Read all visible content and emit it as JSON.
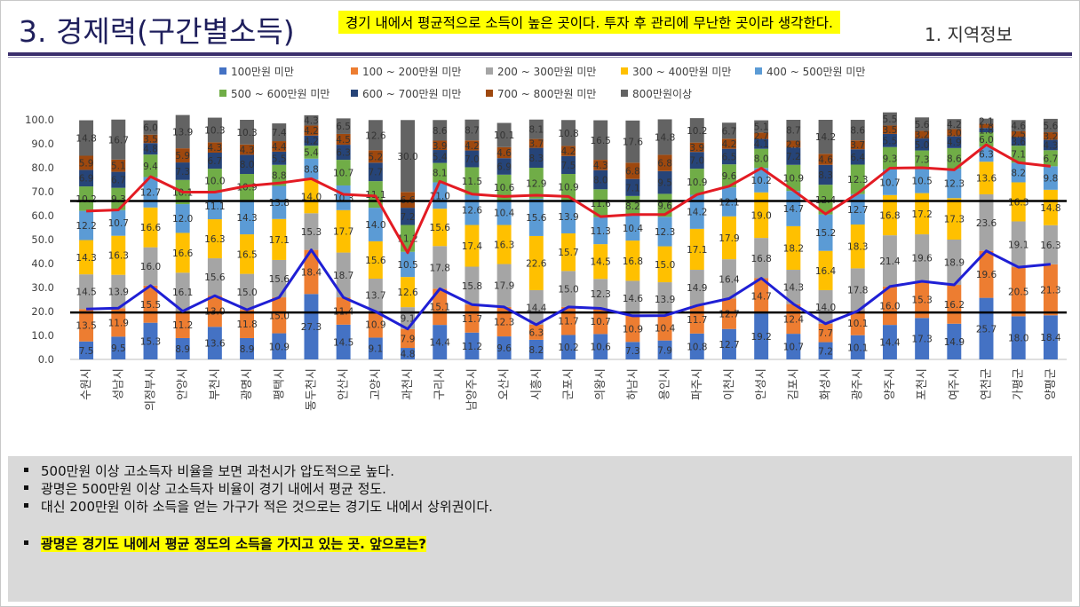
{
  "header": {
    "title": "3. 경제력(구간별소득)",
    "highlight": "경기 내에서 평균적으로 소득이 높은 곳이다. 투자 후 관리에 무난한 곳이라 생각한다.",
    "section": "1. 지역정보"
  },
  "notes": {
    "items": [
      "500만원 이상 고소득자 비율을 보면 과천시가 압도적으로 높다.",
      "광명은 500만원 이상 고소득자 비율이 경기 내에서 평균 정도.",
      "대신 200만원 이하 소득을 얻는 가구가 적은 것으로는 경기도 내에서 상위권이다."
    ],
    "conclusion": "광명은 경기도 내에서 평균 정도의 소득을 가지고 있는 곳. 앞으로는?"
  },
  "chart_data": {
    "type": "bar",
    "stacked": true,
    "ylim": [
      0,
      100
    ],
    "yticks": [
      "0.0",
      "10.0",
      "20.0",
      "30.0",
      "40.0",
      "50.0",
      "60.0",
      "70.0",
      "80.0",
      "90.0",
      "100.0"
    ],
    "legend_position": "top",
    "categories": [
      "수원시",
      "성남시",
      "의정부시",
      "안양시",
      "부천시",
      "광명시",
      "평택시",
      "동두천시",
      "안산시",
      "고양시",
      "과천시",
      "구리시",
      "남양주시",
      "오산시",
      "시흥시",
      "군포시",
      "의왕시",
      "하남시",
      "용인시",
      "파주시",
      "이천시",
      "안성시",
      "김포시",
      "화성시",
      "광주시",
      "양주시",
      "포천시",
      "여주시",
      "연천군",
      "가평군",
      "양평군"
    ],
    "series": [
      {
        "name": "100만원 미만",
        "color": "#4472c4",
        "values": [
          7.5,
          9.5,
          15.3,
          8.9,
          13.6,
          8.9,
          10.9,
          27.3,
          14.5,
          9.1,
          4.8,
          14.4,
          11.2,
          9.6,
          8.2,
          10.2,
          10.6,
          7.3,
          7.9,
          10.8,
          12.7,
          19.2,
          10.7,
          7.2,
          10.1,
          14.4,
          17.3,
          14.9,
          25.7,
          18.0,
          18.4
        ]
      },
      {
        "name": "100 ~ 200만원 미만",
        "color": "#ed7d31",
        "values": [
          13.5,
          11.9,
          15.5,
          11.2,
          13.0,
          11.8,
          15.0,
          18.4,
          11.4,
          10.9,
          7.9,
          15.1,
          11.7,
          12.3,
          6.3,
          11.7,
          10.7,
          10.9,
          10.4,
          11.7,
          12.7,
          14.7,
          12.4,
          7.7,
          10.1,
          16.0,
          15.3,
          16.2,
          19.6,
          20.5,
          21.3
        ]
      },
      {
        "name": "200 ~ 300만원 미만",
        "color": "#a5a5a5",
        "values": [
          14.5,
          13.9,
          16.0,
          16.1,
          15.6,
          15.0,
          15.6,
          15.3,
          18.7,
          13.7,
          9.1,
          17.8,
          15.8,
          17.9,
          14.4,
          15.0,
          12.3,
          14.6,
          13.9,
          14.9,
          16.4,
          16.8,
          14.3,
          14.0,
          17.8,
          21.4,
          19.6,
          18.9,
          23.6,
          19.1,
          16.3
        ]
      },
      {
        "name": "300 ~ 400만원 미만",
        "color": "#ffc000",
        "values": [
          14.3,
          16.3,
          16.6,
          16.6,
          16.3,
          16.5,
          17.1,
          14.0,
          17.7,
          15.6,
          12.6,
          15.6,
          17.4,
          16.3,
          22.6,
          15.7,
          14.5,
          16.8,
          15.0,
          17.1,
          17.9,
          19.0,
          18.2,
          16.4,
          18.3,
          16.8,
          17.2,
          17.3,
          13.6,
          16.3,
          14.8
        ]
      },
      {
        "name": "400 ~ 500만원 미만",
        "color": "#5b9bd5",
        "values": [
          12.2,
          10.7,
          12.7,
          12.0,
          11.1,
          14.3,
          13.8,
          8.8,
          10.3,
          14.0,
          10.5,
          11.0,
          12.6,
          10.4,
          15.6,
          13.9,
          11.3,
          10.4,
          12.3,
          14.2,
          12.1,
          10.2,
          14.7,
          15.2,
          12.7,
          10.7,
          10.5,
          12.3,
          6.3,
          8.2,
          9.8
        ]
      },
      {
        "name": "500 ~ 600만원 미만",
        "color": "#70ad47",
        "values": [
          10.2,
          9.3,
          9.4,
          10.1,
          10.0,
          10.9,
          8.8,
          5.4,
          10.7,
          11.1,
          11.2,
          8.1,
          11.5,
          10.6,
          12.9,
          10.9,
          11.6,
          8.2,
          9.6,
          10.9,
          9.6,
          8.0,
          10.9,
          12.4,
          12.3,
          9.3,
          7.3,
          8.6,
          6.0,
          7.1,
          6.7
        ]
      },
      {
        "name": "600 ~ 700만원 미만",
        "color": "#264478",
        "values": [
          6.9,
          6.7,
          4.8,
          7.3,
          6.7,
          8.0,
          5.5,
          4.2,
          6.3,
          7.7,
          7.2,
          5.4,
          7.0,
          6.9,
          8.3,
          7.5,
          8.0,
          7.1,
          9.5,
          7.0,
          6.5,
          4.1,
          7.2,
          8.3,
          6.4,
          5.5,
          5.0,
          4.9,
          1.8,
          3.6,
          4.3
        ]
      },
      {
        "name": "700 ~ 800만원 미만",
        "color": "#9e480e",
        "values": [
          5.9,
          5.1,
          3.5,
          5.9,
          4.3,
          4.3,
          4.4,
          4.2,
          4.5,
          5.2,
          6.6,
          3.9,
          4.2,
          4.6,
          3.7,
          4.2,
          4.3,
          6.8,
          6.8,
          3.9,
          4.2,
          2.7,
          2.9,
          4.6,
          3.7,
          3.5,
          3.2,
          3.0,
          1.8,
          2.5,
          3.2
        ]
      },
      {
        "name": "800만원이상",
        "color": "#636363",
        "values": [
          14.8,
          16.7,
          6.0,
          13.9,
          10.3,
          10.3,
          7.4,
          4.3,
          6.5,
          12.6,
          30.0,
          8.6,
          8.7,
          10.1,
          8.1,
          10.8,
          16.5,
          17.6,
          14.8,
          10.2,
          6.7,
          5.1,
          8.7,
          14.2,
          8.6,
          5.5,
          5.6,
          4.2,
          2.1,
          4.6,
          5.6
        ]
      }
    ],
    "lines": [
      {
        "color": "#e31b23",
        "values": [
          61.9,
          62.4,
          76.3,
          69.8,
          69.8,
          72.4,
          73.6,
          75.4,
          68.9,
          68.2,
          44.5,
          74.3,
          69.0,
          68.0,
          68.5,
          68.0,
          59.6,
          60.5,
          60.5,
          68.8,
          72.3,
          79.8,
          70.5,
          60.7,
          69.3,
          79.8,
          80.0,
          79.1,
          89.6,
          82.1,
          80.6
        ]
      },
      {
        "color": "#1f1fd4",
        "values": [
          21.0,
          21.4,
          30.8,
          20.1,
          26.6,
          20.7,
          25.9,
          45.7,
          25.9,
          20.0,
          12.7,
          29.5,
          22.9,
          21.9,
          14.5,
          21.9,
          21.3,
          18.2,
          18.3,
          22.5,
          25.4,
          33.9,
          23.1,
          14.9,
          20.2,
          30.4,
          32.6,
          31.1,
          45.3,
          38.5,
          39.7
        ]
      }
    ],
    "hlines": [
      66.1,
      19.6
    ]
  }
}
